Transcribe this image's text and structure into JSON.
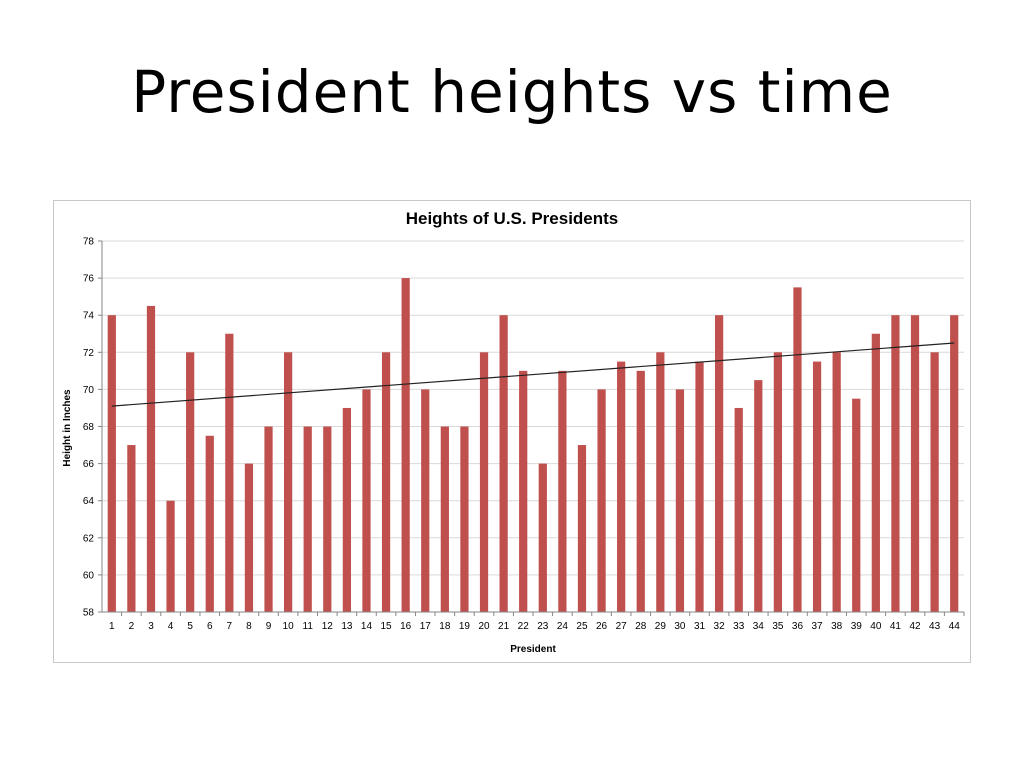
{
  "slide": {
    "title": "President heights vs time"
  },
  "colors": {
    "bar": "#c0504d",
    "gridline": "#d9d9d9",
    "trendline": "#222222",
    "axis": "#868686"
  },
  "chart_data": {
    "type": "bar",
    "title": "Heights of U.S. Presidents",
    "xlabel": "President",
    "ylabel": "Height in Inches",
    "ylim": [
      58,
      78
    ],
    "yticks": [
      58,
      60,
      62,
      64,
      66,
      68,
      70,
      72,
      74,
      76,
      78
    ],
    "grid": true,
    "legend": "none",
    "categories": [
      "1",
      "2",
      "3",
      "4",
      "5",
      "6",
      "7",
      "8",
      "9",
      "10",
      "11",
      "12",
      "13",
      "14",
      "15",
      "16",
      "17",
      "18",
      "19",
      "20",
      "21",
      "22",
      "23",
      "24",
      "25",
      "26",
      "27",
      "28",
      "29",
      "30",
      "31",
      "32",
      "33",
      "34",
      "35",
      "36",
      "37",
      "38",
      "39",
      "40",
      "41",
      "42",
      "43",
      "44"
    ],
    "values": [
      74,
      67,
      74.5,
      64,
      72,
      67.5,
      73,
      66,
      68,
      72,
      68,
      68,
      69,
      70,
      72,
      76,
      70,
      68,
      68,
      72,
      74,
      71,
      66,
      71,
      67,
      70,
      71.5,
      71,
      72,
      70,
      71.5,
      74,
      69,
      70.5,
      72,
      75.5,
      71.5,
      72,
      69.5,
      73,
      74,
      74,
      72,
      74
    ],
    "trendline": {
      "type": "linear",
      "start": [
        1,
        69.1
      ],
      "end": [
        44,
        72.5
      ]
    }
  }
}
